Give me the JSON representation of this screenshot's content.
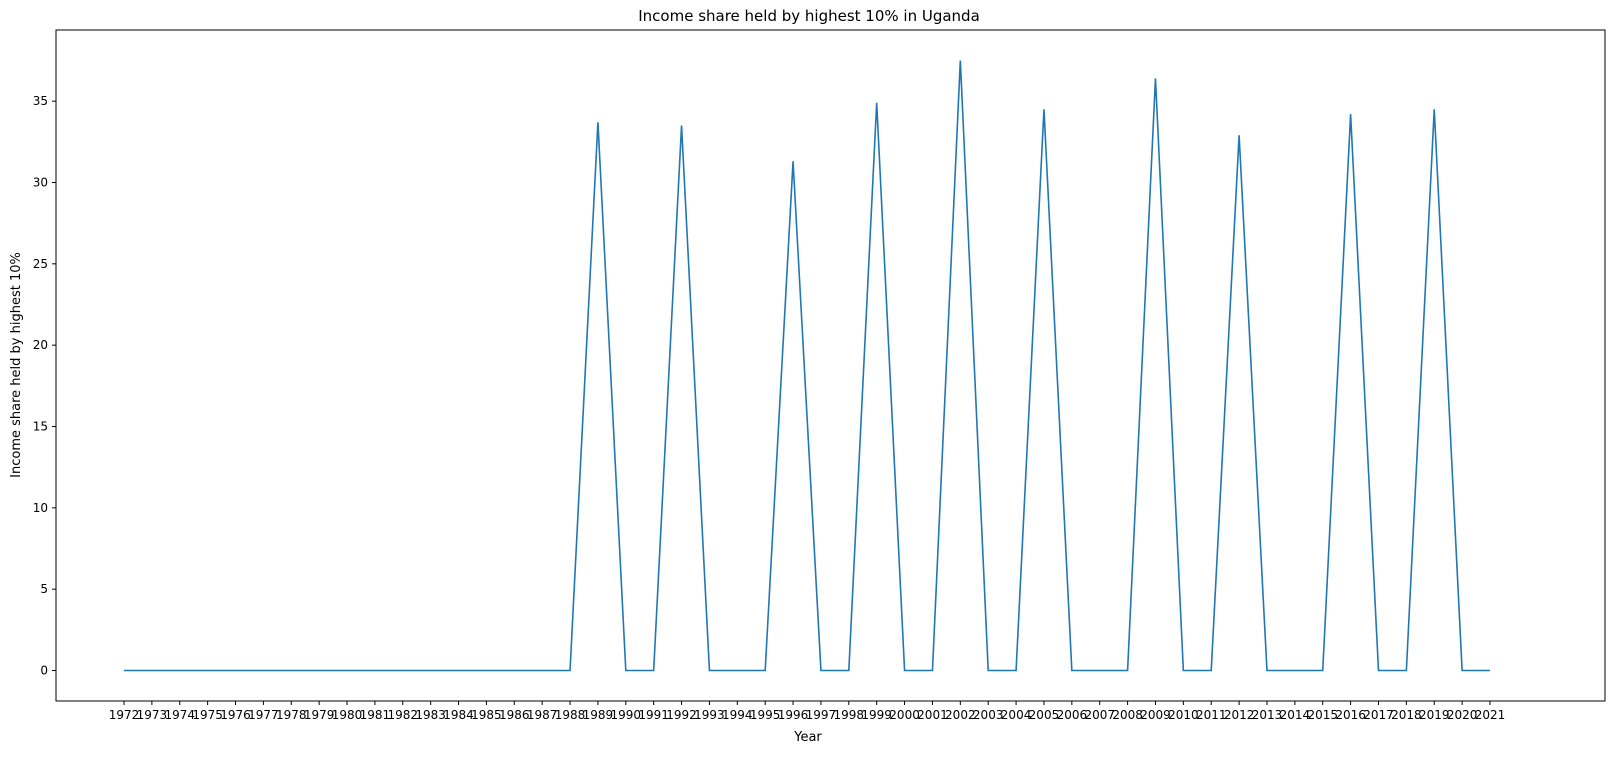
{
  "chart_data": {
    "type": "line",
    "title": "Income share held by highest 10% in Uganda",
    "xlabel": "Year",
    "ylabel": "Income share held by highest 10%",
    "x": [
      "1972",
      "1973",
      "1974",
      "1975",
      "1976",
      "1977",
      "1978",
      "1979",
      "1980",
      "1981",
      "1982",
      "1983",
      "1984",
      "1985",
      "1986",
      "1987",
      "1988",
      "1989",
      "1990",
      "1991",
      "1992",
      "1993",
      "1994",
      "1995",
      "1996",
      "1997",
      "1998",
      "1999",
      "2000",
      "2001",
      "2002",
      "2003",
      "2004",
      "2005",
      "2006",
      "2007",
      "2008",
      "2009",
      "2010",
      "2011",
      "2012",
      "2013",
      "2014",
      "2015",
      "2016",
      "2017",
      "2018",
      "2019",
      "2020",
      "2021"
    ],
    "series": [
      {
        "values": [
          0,
          0,
          0,
          0,
          0,
          0,
          0,
          0,
          0,
          0,
          0,
          0,
          0,
          0,
          0,
          0,
          0,
          33.7,
          0,
          0,
          33.5,
          0,
          0,
          0,
          31.3,
          0,
          0,
          34.9,
          0,
          0,
          37.5,
          0,
          0,
          34.5,
          0,
          0,
          0,
          36.4,
          0,
          0,
          32.9,
          0,
          0,
          0,
          34.2,
          0,
          0,
          34.5,
          0,
          0
        ]
      }
    ],
    "yticks": [
      0,
      5,
      10,
      15,
      20,
      25,
      30,
      35
    ],
    "ylim": [
      -1.875,
      39.375
    ],
    "grid": false,
    "legend": false,
    "line_color": "#1f77b4"
  }
}
